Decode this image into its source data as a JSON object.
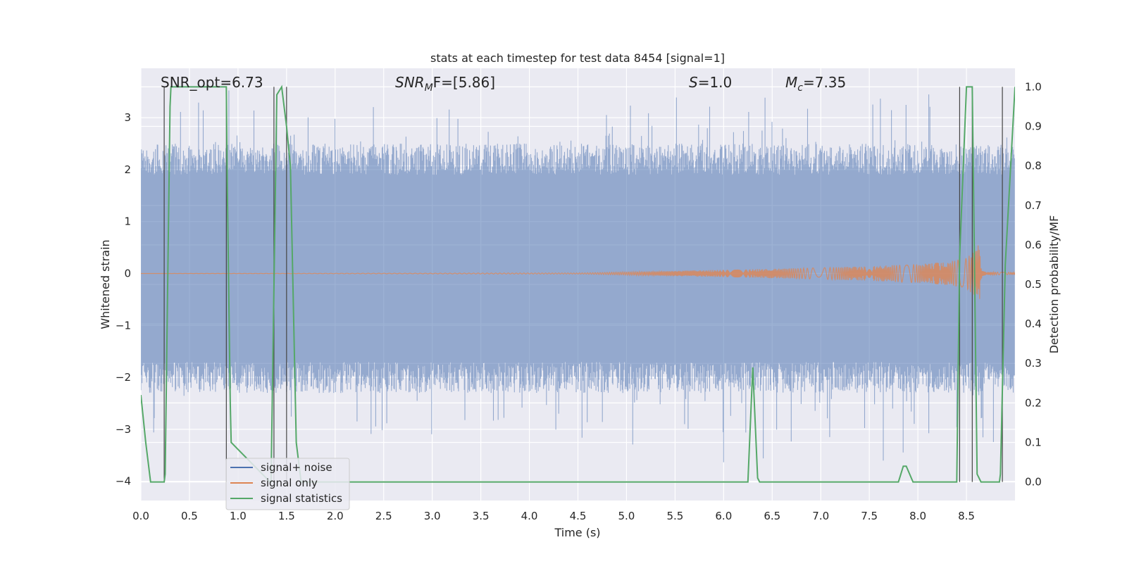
{
  "chart_data": {
    "type": "line",
    "title": "stats at each timestep for test data 8454 [signal=1]",
    "xlabel": "Time (s)",
    "ylabel_left": "Whitened strain",
    "ylabel_right": "Detection probability/MF",
    "xlim": [
      0.0,
      9.0
    ],
    "ylim_left": [
      -4.37,
      3.95
    ],
    "ylim_right": [
      -0.047,
      1.047
    ],
    "x_ticks": [
      "0.0",
      "0.5",
      "1.0",
      "1.5",
      "2.0",
      "2.5",
      "3.0",
      "3.5",
      "4.0",
      "4.5",
      "5.0",
      "5.5",
      "6.0",
      "6.5",
      "7.0",
      "7.5",
      "8.0",
      "8.5"
    ],
    "y_ticks_left": [
      "−4",
      "−3",
      "−2",
      "−1",
      "0",
      "1",
      "2",
      "3"
    ],
    "y_ticks_right": [
      "0.0",
      "0.1",
      "0.2",
      "0.3",
      "0.4",
      "0.5",
      "0.6",
      "0.7",
      "0.8",
      "0.9",
      "1.0"
    ],
    "grid": true,
    "legend_position": "lower-left",
    "annotations": {
      "snr_opt": "SNR_opt=6.73",
      "snr_mf_base": "SNR",
      "snr_mf_sub": "M",
      "snr_mf_rest": "F=[5.86]",
      "s_var": "S",
      "s_rest": "=1.0",
      "mc_var": "M",
      "mc_sub": "c",
      "mc_rest": "=7.35"
    },
    "series": [
      {
        "name": "signal+ noise",
        "color": "#4c72b0",
        "note": "whitened strain noise, approx uniform band between -1.9 and 2.1 with spikes to about +/-3.5"
      },
      {
        "name": "signal only",
        "color": "#dd8452",
        "x": [
          0.0,
          4.5,
          5.0,
          5.5,
          6.0,
          6.5,
          7.0,
          7.5,
          8.0,
          8.3,
          8.5,
          8.6,
          8.63,
          8.66,
          8.7,
          9.0
        ],
        "amplitude": [
          0.0,
          0.01,
          0.03,
          0.05,
          0.07,
          0.09,
          0.11,
          0.14,
          0.18,
          0.22,
          0.3,
          0.45,
          0.6,
          0.05,
          0.03,
          0.02
        ]
      },
      {
        "name": "signal statistics",
        "color": "#55a868",
        "x": [
          0.0,
          0.05,
          0.1,
          0.24,
          0.25,
          0.3,
          0.31,
          0.88,
          0.89,
          0.92,
          0.93,
          1.33,
          1.34,
          1.4,
          1.45,
          1.5,
          1.54,
          1.6,
          1.65,
          6.25,
          6.3,
          6.35,
          6.37,
          6.45,
          7.8,
          7.85,
          7.88,
          7.95,
          8.4,
          8.43,
          8.5,
          8.56,
          8.61,
          8.65,
          8.84,
          8.85,
          8.9,
          9.0
        ],
        "y": [
          0.22,
          0.1,
          0.0,
          0.0,
          0.02,
          0.95,
          1.0,
          1.0,
          0.75,
          0.2,
          0.1,
          0.0,
          0.0,
          0.98,
          1.0,
          0.9,
          0.8,
          0.1,
          0.0,
          0.0,
          0.29,
          0.01,
          0.0,
          0.0,
          0.0,
          0.04,
          0.04,
          0.0,
          0.0,
          0.57,
          1.0,
          1.0,
          0.02,
          0.0,
          0.0,
          0.02,
          0.55,
          1.0
        ]
      }
    ],
    "vlines": [
      0.24,
      0.88,
      1.37,
      1.5,
      8.43,
      8.56,
      8.87
    ]
  }
}
